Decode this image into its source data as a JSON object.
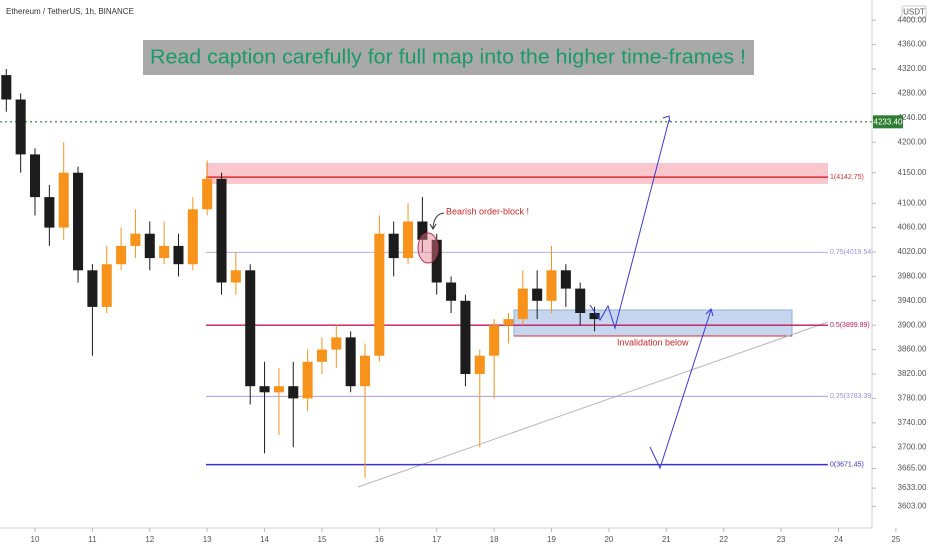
{
  "chart_data": {
    "type": "candlestick",
    "header": "Ethereum / TetherUS, 1h, BINANCE",
    "currency": "USDT",
    "title": "Read caption carefully for full map into the higher time-frames !",
    "xlim": [
      9.39,
      25.63
    ],
    "xticks": [
      10,
      11,
      12,
      13,
      14,
      15,
      16,
      17,
      18,
      19,
      20,
      21,
      22,
      23,
      24,
      25
    ],
    "ylim": [
      3570,
      4420
    ],
    "yticks": [
      {
        "value": 4400,
        "label": "4400.00"
      },
      {
        "value": 4360,
        "label": "4360.00"
      },
      {
        "value": 4320,
        "label": "4320.00"
      },
      {
        "value": 4280,
        "label": "4280.00"
      },
      {
        "value": 4240,
        "label": "4240.00"
      },
      {
        "value": 4200,
        "label": "4200.00"
      },
      {
        "value": 4150,
        "label": "4150.00"
      },
      {
        "value": 4100,
        "label": "4100.00"
      },
      {
        "value": 4060,
        "label": "4060.00"
      },
      {
        "value": 4020,
        "label": "4020.00"
      },
      {
        "value": 3980,
        "label": "3980.00"
      },
      {
        "value": 3940,
        "label": "3940.00"
      },
      {
        "value": 3900,
        "label": "3900.00"
      },
      {
        "value": 3860,
        "label": "3860.00"
      },
      {
        "value": 3820,
        "label": "3820.00"
      },
      {
        "value": 3780,
        "label": "3780.00"
      },
      {
        "value": 3740,
        "label": "3740.00"
      },
      {
        "value": 3700,
        "label": "3700.00"
      },
      {
        "value": 3665,
        "label": "3665.00"
      },
      {
        "value": 3633,
        "label": "3633.00"
      },
      {
        "value": 3603,
        "label": "3603.00"
      }
    ],
    "up_color": "#f7931a",
    "down_color": "#1c1c1c",
    "x": [
      9.5,
      9.75,
      10,
      10.25,
      10.5,
      10.75,
      11,
      11.25,
      11.5,
      11.75,
      12,
      12.25,
      12.5,
      12.75,
      13,
      13.25,
      13.5,
      13.75,
      14,
      14.25,
      14.5,
      14.75,
      15,
      15.25,
      15.5,
      15.75,
      16,
      16.25,
      16.5,
      16.75,
      17,
      17.25,
      17.5,
      17.75,
      18,
      18.25,
      18.5,
      18.75,
      19,
      19.25,
      19.5,
      19.75
    ],
    "open": [
      4310,
      4270,
      4180,
      4110,
      4060,
      4150,
      3990,
      3930,
      4000,
      4030,
      4050,
      4010,
      4030,
      4000,
      4090,
      4140,
      3970,
      3990,
      3800,
      3790,
      3800,
      3780,
      3840,
      3860,
      3880,
      3800,
      3850,
      4050,
      4010,
      4070,
      4040,
      3970,
      3940,
      3820,
      3850,
      3900,
      3910,
      3960,
      3940,
      3990,
      3960,
      3920
    ],
    "high": [
      4320,
      4280,
      4190,
      4130,
      4200,
      4160,
      4000,
      4030,
      4060,
      4090,
      4070,
      4070,
      4050,
      4110,
      4170,
      4150,
      4020,
      4000,
      3840,
      3830,
      3840,
      3860,
      3880,
      3900,
      3890,
      3870,
      4080,
      4070,
      4100,
      4110,
      4050,
      3980,
      3950,
      3860,
      3910,
      3920,
      3990,
      3990,
      4030,
      4000,
      3970,
      3930
    ],
    "low": [
      4250,
      4150,
      4080,
      4030,
      4040,
      3970,
      3850,
      3920,
      3990,
      4010,
      3990,
      4000,
      3980,
      3990,
      4080,
      3950,
      3950,
      3770,
      3690,
      3720,
      3700,
      3760,
      3820,
      3830,
      3790,
      3650,
      3840,
      3980,
      4000,
      4020,
      3950,
      3920,
      3800,
      3700,
      3780,
      3870,
      3900,
      3910,
      3920,
      3930,
      3900,
      3890
    ],
    "close": [
      4270,
      4180,
      4110,
      4060,
      4150,
      3990,
      3930,
      4000,
      4030,
      4050,
      4010,
      4030,
      4000,
      4090,
      4140,
      3970,
      3990,
      3800,
      3790,
      3800,
      3780,
      3840,
      3860,
      3880,
      3800,
      3850,
      4050,
      4010,
      4070,
      4040,
      3970,
      3940,
      3820,
      3850,
      3900,
      3910,
      3960,
      3940,
      3990,
      3960,
      3920,
      3910
    ],
    "price_line": {
      "value": 4233.4,
      "label": "4233.40",
      "color": "#2e7d32"
    },
    "fib_levels": [
      {
        "value": 4142.75,
        "label": "1(4142.75)",
        "color": "#d32f2f"
      },
      {
        "value": 4019.54,
        "label": "0.75(4019.54)",
        "color": "#9c8fe0"
      },
      {
        "value": 3899.99,
        "label": "0.5(3899.99)",
        "color": "#c2185b"
      },
      {
        "value": 3783.39,
        "label": "0.25(3783.39)",
        "color": "#9c8fe0"
      },
      {
        "value": 3671.45,
        "label": "0(3671.45)",
        "color": "#3a32d6"
      }
    ],
    "annotations": {
      "order_block": "Bearish order-block !",
      "invalidation": "Invalidation below"
    }
  }
}
